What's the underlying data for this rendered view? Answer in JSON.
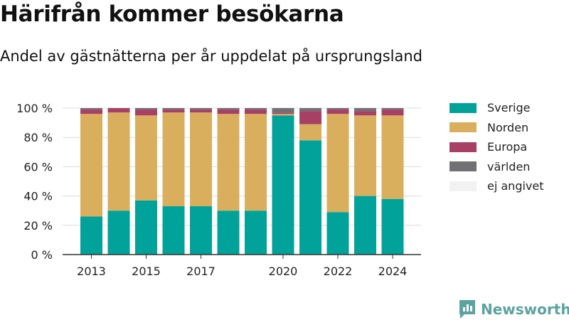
{
  "title": "Härifrån kommer besökarna",
  "subtitle": "Andel av gästnätterna per år uppdelat på ursprungsland",
  "brand": "Newsworthy",
  "colors": {
    "Sverige": "#00a29a",
    "Norden": "#d9af5e",
    "Europa": "#a84065",
    "världen": "#707075",
    "ej angivet": "#f2f2f2",
    "brand": "#5aa39f"
  },
  "chart_data": {
    "type": "bar",
    "stacked": true,
    "categories": [
      "2013",
      "2014",
      "2015",
      "2016",
      "2017",
      "2018",
      "2019",
      "2020",
      "2021",
      "2022",
      "2023",
      "2024"
    ],
    "x_tick_labels": [
      "2013",
      "",
      "2015",
      "",
      "2017",
      "",
      "",
      "2020",
      "",
      "2022",
      "",
      "2024"
    ],
    "series": [
      {
        "name": "Sverige",
        "values": [
          26,
          30,
          37,
          33,
          33,
          30,
          30,
          95,
          78,
          29,
          40,
          38
        ]
      },
      {
        "name": "Norden",
        "values": [
          70,
          67,
          58,
          64,
          64,
          66,
          66,
          1,
          11,
          67,
          55,
          57
        ]
      },
      {
        "name": "Europa",
        "values": [
          3,
          3,
          4,
          2,
          2,
          3,
          3,
          1,
          9,
          3,
          3,
          4
        ]
      },
      {
        "name": "världen",
        "values": [
          1,
          0,
          1,
          1,
          1,
          1,
          1,
          3,
          2,
          1,
          2,
          1
        ]
      },
      {
        "name": "ej angivet",
        "values": [
          0,
          0,
          0,
          0,
          0,
          0,
          0,
          0,
          0,
          0,
          0,
          0
        ]
      }
    ],
    "y_ticks": [
      "0 %",
      "20 %",
      "40 %",
      "60 %",
      "80 %",
      "100 %"
    ],
    "ylim": [
      0,
      100
    ],
    "grid": true,
    "legend_position": "right"
  }
}
